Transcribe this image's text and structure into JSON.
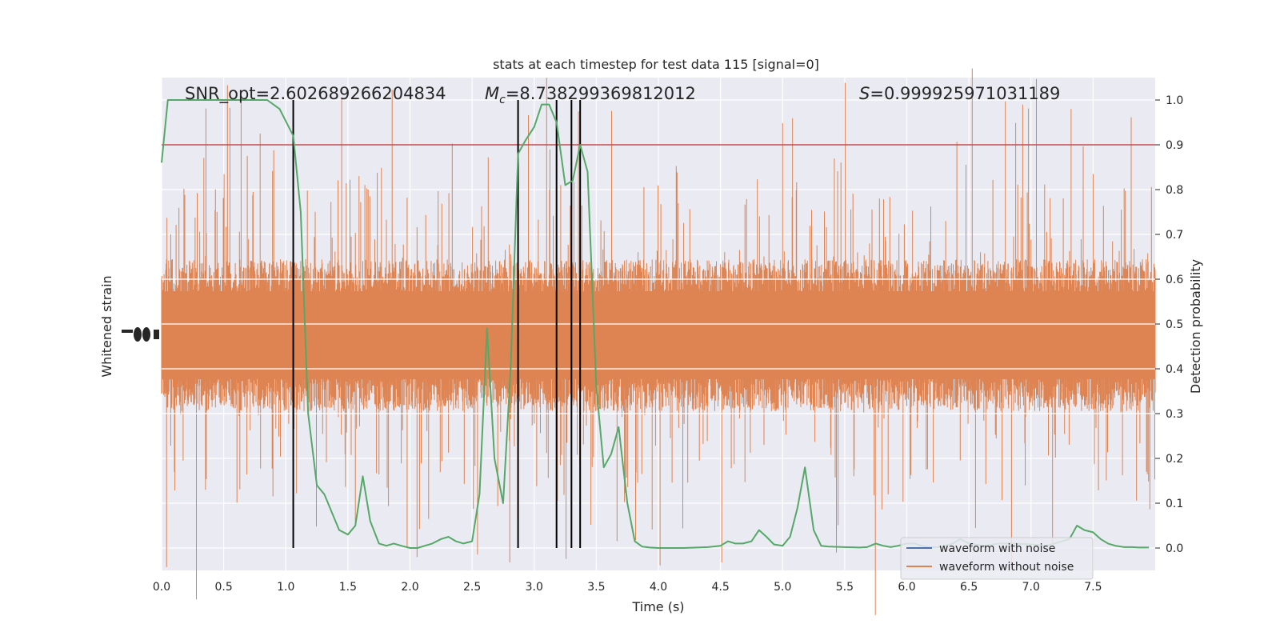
{
  "chart_data": {
    "type": "line",
    "title": "stats at each timestep for test data 115 [signal=0]",
    "xlabel": "Time (s)",
    "ylabel_left": "Whitened strain",
    "ylabel_right": "Detection probability",
    "xlim": [
      0.0,
      8.0
    ],
    "ylim_right": [
      -0.05,
      1.05
    ],
    "xticks": [
      "0.0",
      "0.5",
      "1.0",
      "1.5",
      "2.0",
      "2.5",
      "3.0",
      "3.5",
      "4.0",
      "4.5",
      "5.0",
      "5.5",
      "6.0",
      "6.5",
      "7.0",
      "7.5"
    ],
    "yticks_right": [
      "0.0",
      "0.1",
      "0.2",
      "0.3",
      "0.4",
      "0.5",
      "0.6",
      "0.7",
      "0.8",
      "0.9",
      "1.0"
    ],
    "annotations": {
      "snr": "SNR_opt=2.602689266204834",
      "mc_symbol": "M",
      "mc_sub": "c",
      "mc_value": "=8.738299369812012",
      "s_symbol": "S",
      "s_value": "=0.999925971031189"
    },
    "threshold": 0.9,
    "vlines_x": [
      1.06,
      2.87,
      3.18,
      3.3,
      3.37
    ],
    "legend": {
      "placement": "lower-right",
      "entries": [
        {
          "label": "waveform with noise",
          "color": "#4c72b0"
        },
        {
          "label": "waveform without noise",
          "color": "#dd8452"
        }
      ]
    },
    "colors": {
      "noise": "#dd8452",
      "probability": "#55a868",
      "threshold": "#c44e52",
      "vline": "#000000",
      "background": "#eaeaf2",
      "grid": "#ffffff"
    },
    "series": [
      {
        "name": "Detection probability",
        "x": [
          0.0,
          0.05,
          0.1,
          0.2,
          0.3,
          0.5,
          0.7,
          0.85,
          0.95,
          1.06,
          1.12,
          1.18,
          1.25,
          1.31,
          1.37,
          1.43,
          1.5,
          1.56,
          1.62,
          1.68,
          1.75,
          1.81,
          1.87,
          1.93,
          2.0,
          2.06,
          2.12,
          2.18,
          2.25,
          2.31,
          2.37,
          2.43,
          2.5,
          2.56,
          2.62,
          2.68,
          2.75,
          2.81,
          2.87,
          2.93,
          3.0,
          3.06,
          3.12,
          3.18,
          3.25,
          3.31,
          3.37,
          3.43,
          3.5,
          3.56,
          3.62,
          3.68,
          3.75,
          3.81,
          3.87,
          3.93,
          4.0,
          4.2,
          4.4,
          4.5,
          4.56,
          4.62,
          4.68,
          4.75,
          4.81,
          4.87,
          4.93,
          5.0,
          5.06,
          5.12,
          5.18,
          5.25,
          5.31,
          5.37,
          5.5,
          5.62,
          5.68,
          5.75,
          5.81,
          5.87,
          5.93,
          6.0,
          6.06,
          6.12,
          6.18,
          6.25,
          6.31,
          6.37,
          6.43,
          6.5,
          6.62,
          6.75,
          6.87,
          7.0,
          7.12,
          7.25,
          7.31,
          7.37,
          7.43,
          7.5,
          7.56,
          7.62,
          7.68,
          7.75,
          7.81,
          7.87,
          7.95
        ],
        "y": [
          0.86,
          1.0,
          1.0,
          1.0,
          1.0,
          1.0,
          1.0,
          1.0,
          0.98,
          0.92,
          0.75,
          0.3,
          0.14,
          0.12,
          0.08,
          0.04,
          0.03,
          0.05,
          0.16,
          0.06,
          0.01,
          0.005,
          0.01,
          0.005,
          0.0,
          0.0,
          0.005,
          0.01,
          0.02,
          0.025,
          0.015,
          0.01,
          0.015,
          0.12,
          0.49,
          0.2,
          0.1,
          0.4,
          0.88,
          0.91,
          0.94,
          0.99,
          0.99,
          0.95,
          0.81,
          0.82,
          0.9,
          0.84,
          0.36,
          0.18,
          0.21,
          0.27,
          0.1,
          0.015,
          0.003,
          0.001,
          0.0,
          0.0,
          0.002,
          0.005,
          0.015,
          0.01,
          0.01,
          0.015,
          0.04,
          0.025,
          0.008,
          0.005,
          0.025,
          0.09,
          0.18,
          0.04,
          0.005,
          0.003,
          0.002,
          0.001,
          0.002,
          0.01,
          0.005,
          0.002,
          0.005,
          0.01,
          0.01,
          0.005,
          0.002,
          0.002,
          0.005,
          0.01,
          0.02,
          0.01,
          0.005,
          0.01,
          0.01,
          0.008,
          0.005,
          0.015,
          0.02,
          0.05,
          0.04,
          0.035,
          0.02,
          0.01,
          0.005,
          0.002,
          0.002,
          0.001,
          0.001
        ]
      }
    ]
  }
}
